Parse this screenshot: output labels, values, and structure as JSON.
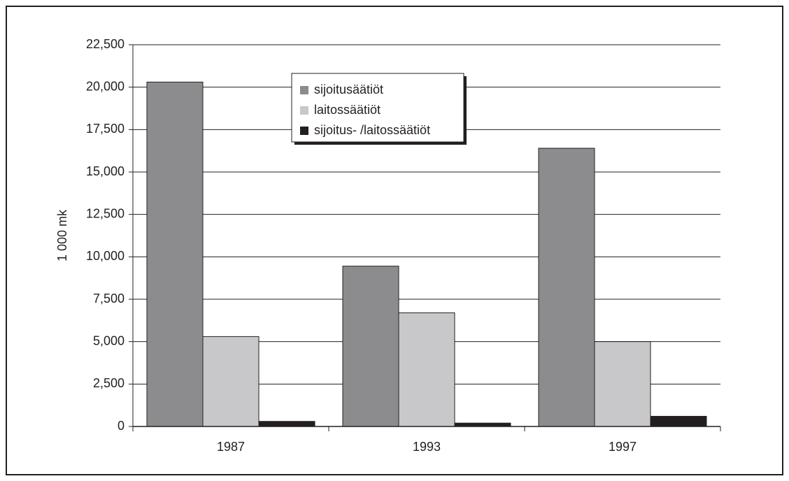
{
  "chart_data": {
    "type": "bar",
    "ylabel": "1 000 mk",
    "categories": [
      "1987",
      "1993",
      "1997"
    ],
    "series": [
      {
        "name": "sijoitusäätiöt",
        "color": "#8c8c8e",
        "values": [
          20300,
          9450,
          16400
        ]
      },
      {
        "name": "laitossäätiöt",
        "color": "#c8c8ca",
        "values": [
          5300,
          6700,
          5000
        ]
      },
      {
        "name": "sijoitus- /laitossäätiöt",
        "color": "#231f20",
        "values": [
          300,
          200,
          600
        ]
      }
    ],
    "ylim": [
      0,
      22500
    ],
    "yticks": [
      0,
      {
        "value": 2500,
        "label": "2,500"
      },
      {
        "value": 5000,
        "label": "5,000"
      },
      {
        "value": 7500,
        "label": "7,500"
      },
      {
        "value": 10000,
        "label": "10,000"
      },
      {
        "value": 12500,
        "label": "12,500"
      },
      {
        "value": 15000,
        "label": "15,000"
      },
      {
        "value": 17500,
        "label": "17,500"
      },
      {
        "value": 20000,
        "label": "20,000"
      },
      {
        "value": 22500,
        "label": "22,500"
      }
    ],
    "grid": true,
    "legend": "top"
  }
}
